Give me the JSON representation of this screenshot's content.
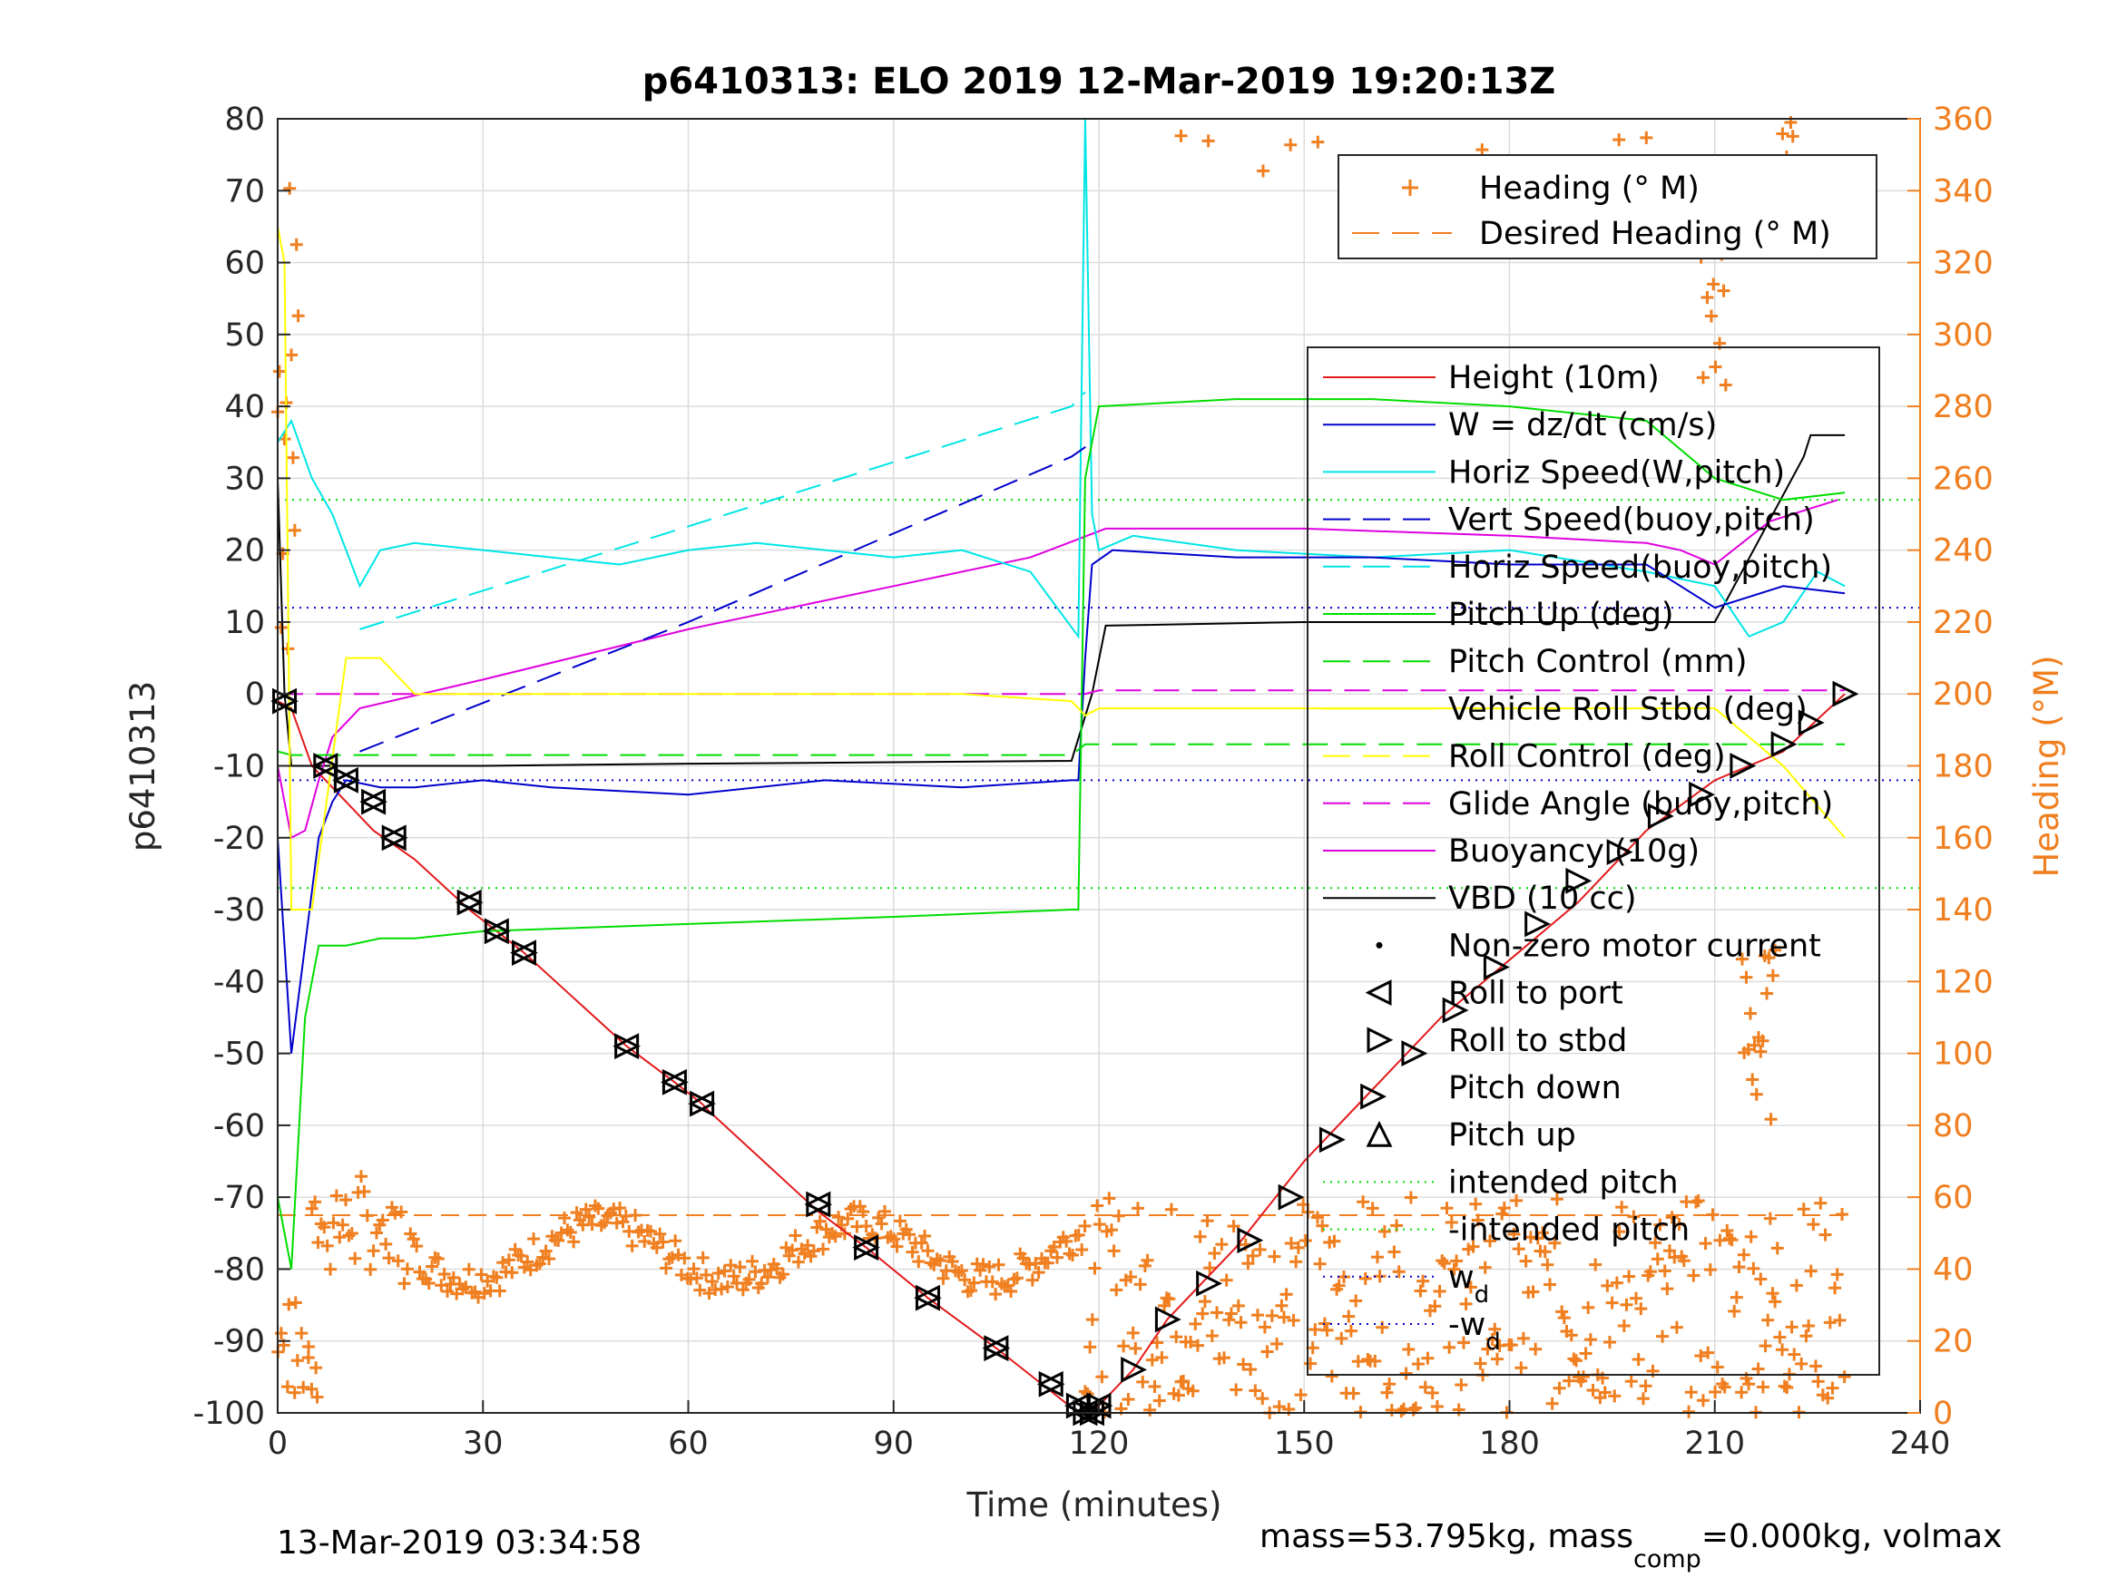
{
  "chart_data": {
    "type": "line",
    "title": "p6410313: ELO 2019 12-Mar-2019 19:20:13Z",
    "xlabel": "Time (minutes)",
    "ylabel": "p6410313",
    "ylabel_right": "Heading (°M)",
    "xlim": [
      0,
      240
    ],
    "ylim": [
      -100,
      80
    ],
    "ylim_right": [
      0,
      360
    ],
    "x_ticks": [
      "0",
      "30",
      "60",
      "90",
      "120",
      "150",
      "180",
      "210",
      "240"
    ],
    "y_ticks": [
      "80",
      "70",
      "60",
      "50",
      "40",
      "30",
      "20",
      "10",
      "0",
      "-10",
      "-20",
      "-30",
      "-40",
      "-50",
      "-60",
      "-70",
      "-80",
      "-90",
      "-100"
    ],
    "y_ticks_right": [
      "360",
      "340",
      "320",
      "300",
      "280",
      "260",
      "240",
      "220",
      "200",
      "180",
      "160",
      "140",
      "120",
      "100",
      "80",
      "60",
      "40",
      "20",
      "0"
    ],
    "grid": true,
    "footer_left": "13-Mar-2019 03:34:58",
    "footer_right_pre": "mass=53.795kg, mass",
    "footer_right_sub": "comp",
    "footer_right_post": "=0.000kg, volmax",
    "legend_heading": [
      {
        "name": "Heading (° M)",
        "color": "#f07f20",
        "style": "plus"
      },
      {
        "name": "Desired Heading (° M)",
        "color": "#f07f20",
        "style": "dashed"
      }
    ],
    "legend_main": [
      {
        "name": "Height (10m)",
        "color": "#e31a1c",
        "style": "solid"
      },
      {
        "name": "W = dz/dt (cm/s)",
        "color": "#0000cc",
        "style": "solid"
      },
      {
        "name": "Horiz Speed(W,pitch)",
        "color": "#00e5e5",
        "style": "solid"
      },
      {
        "name": "Vert Speed(buoy,pitch)",
        "color": "#0000cc",
        "style": "dashed"
      },
      {
        "name": "Horiz Speed(buoy,pitch)",
        "color": "#00e5e5",
        "style": "dashed"
      },
      {
        "name": "Pitch Up (deg)",
        "color": "#00dd00",
        "style": "solid"
      },
      {
        "name": "Pitch Control (mm)",
        "color": "#00dd00",
        "style": "dashed"
      },
      {
        "name": "Vehicle Roll Stbd (deg)",
        "color": "#ffff00",
        "style": "solid"
      },
      {
        "name": "Roll Control (deg)",
        "color": "#ffff00",
        "style": "dashed"
      },
      {
        "name": "Glide Angle (buoy,pitch)",
        "color": "#e000e0",
        "style": "dashed"
      },
      {
        "name": "Buoyancy (10g)",
        "color": "#e000e0",
        "style": "solid"
      },
      {
        "name": "VBD (10 cc)",
        "color": "#000000",
        "style": "solid"
      },
      {
        "name": "Non-zero motor current",
        "color": "#000000",
        "style": "dot"
      },
      {
        "name": "Roll to port",
        "color": "#000000",
        "style": "tri-left"
      },
      {
        "name": "Roll to stbd",
        "color": "#000000",
        "style": "tri-right"
      },
      {
        "name": "Pitch down",
        "color": "#000000",
        "style": "tri-down"
      },
      {
        "name": "Pitch up",
        "color": "#000000",
        "style": "tri-up"
      },
      {
        "name": "intended pitch",
        "color": "#00dd00",
        "style": "dotted"
      },
      {
        "name": "-intended pitch",
        "color": "#00dd00",
        "style": "dotted"
      },
      {
        "name": "w_d",
        "color": "#0000cc",
        "style": "dotted"
      },
      {
        "name": "-w_d",
        "color": "#0000cc",
        "style": "dotted"
      }
    ],
    "reference_lines": {
      "intended_pitch": 27,
      "neg_intended_pitch": -27,
      "w_d": 12,
      "neg_w_d": -12,
      "desired_heading": 55
    },
    "series": [
      {
        "name": "Height (10m)",
        "color": "#e31a1c",
        "x": [
          0,
          2,
          5,
          8,
          11,
          14,
          17,
          20,
          28,
          32,
          36,
          51,
          58,
          62,
          63,
          79,
          86,
          95,
          105,
          113,
          117,
          118,
          119,
          120,
          125,
          130,
          140,
          150,
          160,
          170,
          180,
          190,
          200,
          210,
          220,
          229
        ],
        "y": [
          -1,
          -2,
          -10,
          -13,
          -16,
          -19,
          -21,
          -23,
          -30,
          -33,
          -36,
          -49,
          -54,
          -57,
          -58,
          -72,
          -77,
          -84,
          -91,
          -97,
          -100,
          -100,
          -100,
          -99,
          -94,
          -87,
          -77,
          -65,
          -55,
          -45,
          -37,
          -29,
          -19,
          -12,
          -8,
          0
        ]
      },
      {
        "name": "VBD (10 cc)",
        "color": "#000000",
        "x": [
          0,
          1,
          2,
          30,
          60,
          90,
          116,
          119,
          121,
          150,
          180,
          200,
          210,
          223,
          224,
          229
        ],
        "y": [
          30,
          0,
          -10,
          -10,
          -9.7,
          -9.5,
          -9.3,
          0,
          9.5,
          10,
          10,
          10,
          10,
          33,
          36,
          36
        ]
      },
      {
        "name": "Buoyancy (10g)",
        "color": "#e000e0",
        "x": [
          0,
          2,
          4,
          6,
          8,
          12,
          30,
          60,
          90,
          110,
          121,
          150,
          180,
          200,
          205,
          210,
          218,
          228
        ],
        "y": [
          -10,
          -20,
          -19,
          -12,
          -6,
          -2,
          2,
          9,
          15,
          19,
          23,
          23,
          22,
          21,
          20,
          18,
          24,
          27
        ]
      },
      {
        "name": "Glide Angle (buoy,pitch)",
        "color": "#e000e0",
        "x": [
          0,
          5,
          30,
          60,
          90,
          118,
          120,
          150,
          180,
          210,
          229
        ],
        "y": [
          0,
          0,
          0,
          0,
          0,
          0,
          0.5,
          0.5,
          0.5,
          0.5,
          0.5
        ]
      },
      {
        "name": "Horiz Speed(W,pitch)",
        "color": "#00e5e5",
        "x": [
          0,
          2,
          5,
          8,
          12,
          15,
          20,
          30,
          40,
          50,
          60,
          70,
          80,
          90,
          100,
          110,
          117,
          118,
          119,
          120,
          125,
          140,
          160,
          180,
          200,
          210,
          215,
          220,
          225,
          229
        ],
        "y": [
          35,
          38,
          30,
          25,
          15,
          20,
          21,
          20,
          19,
          18,
          20,
          21,
          20,
          19,
          20,
          17,
          8,
          80,
          25,
          20,
          22,
          20,
          19,
          20,
          17,
          15,
          8,
          10,
          17,
          15
        ]
      },
      {
        "name": "Horiz Speed(buoy,pitch)",
        "color": "#00e5e5",
        "x": [
          12,
          116,
          118
        ],
        "y": [
          9,
          40,
          42
        ]
      },
      {
        "name": "Vert Speed(buoy,pitch)",
        "color": "#0000cc",
        "x": [
          12,
          60,
          116,
          119
        ],
        "y": [
          -8,
          10,
          33,
          35
        ]
      },
      {
        "name": "W = dz/dt (cm/s)",
        "color": "#0000cc",
        "x": [
          0,
          2,
          4,
          6,
          8,
          10,
          15,
          20,
          30,
          40,
          60,
          80,
          100,
          116,
          117,
          118,
          119,
          122,
          140,
          160,
          180,
          200,
          210,
          220,
          229
        ],
        "y": [
          -20,
          -50,
          -35,
          -20,
          -15,
          -12,
          -13,
          -13,
          -12,
          -13,
          -14,
          -12,
          -13,
          -12,
          -12,
          5,
          18,
          20,
          19,
          19,
          18,
          18,
          12,
          15,
          14
        ]
      },
      {
        "name": "Pitch Up (deg)",
        "color": "#00dd00",
        "x": [
          0,
          2,
          4,
          6,
          10,
          15,
          20,
          30,
          60,
          90,
          116,
          117,
          118,
          120,
          140,
          160,
          180,
          200,
          210,
          220,
          229
        ],
        "y": [
          -70,
          -80,
          -45,
          -35,
          -35,
          -34,
          -34,
          -33,
          -32,
          -31,
          -30,
          -30,
          30,
          40,
          41,
          41,
          40,
          38,
          30,
          27,
          28
        ]
      },
      {
        "name": "Pitch Control (mm)",
        "color": "#00dd00",
        "x": [
          0,
          2,
          116,
          118,
          120,
          229
        ],
        "y": [
          -8,
          -8.5,
          -8.5,
          -7,
          -7,
          -7
        ]
      },
      {
        "name": "Vehicle Roll Stbd (deg)",
        "color": "#ffff00",
        "x": [
          0,
          1,
          2,
          5,
          10,
          15,
          20,
          40,
          60,
          80,
          100,
          116,
          118,
          120,
          140,
          160,
          180,
          200,
          210,
          220,
          229
        ],
        "y": [
          65,
          60,
          -30,
          -30,
          5,
          5,
          0,
          0,
          0,
          0,
          0,
          -1,
          -3,
          -2,
          -2,
          -2,
          -2,
          -2,
          -2,
          -10,
          -20
        ]
      }
    ],
    "markers_roll_port_x": [
      1,
      7,
      10,
      14,
      17,
      28,
      32,
      36,
      51,
      58,
      62,
      79,
      86,
      95,
      105,
      113,
      117,
      118,
      119,
      120
    ],
    "markers_roll_port_y": [
      -1,
      -10,
      -12,
      -15,
      -20,
      -29,
      -33,
      -36,
      -49,
      -54,
      -57,
      -71,
      -77,
      -84,
      -91,
      -96,
      -99,
      -100,
      -100,
      -99
    ],
    "markers_roll_stbd_x": [
      125,
      130,
      136,
      142,
      148,
      154,
      160,
      166,
      172,
      178,
      184,
      190,
      196,
      202,
      208,
      214,
      220,
      224,
      229
    ],
    "markers_roll_stbd_y": [
      -94,
      -87,
      -82,
      -76,
      -70,
      -62,
      -56,
      -50,
      -44,
      -38,
      -32,
      -26,
      -22,
      -17,
      -14,
      -10,
      -7,
      -4,
      0
    ],
    "heading_cloud_note": "orange plus markers, heading in degrees M"
  }
}
